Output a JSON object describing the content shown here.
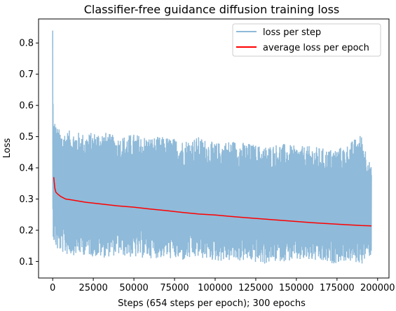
{
  "chart_data": {
    "type": "line",
    "title": "Classifier-free guidance diffusion training loss",
    "xlabel": "Steps (654 steps per epoch); 300 epochs",
    "ylabel": "Loss",
    "xlim": [
      -8700,
      207000
    ],
    "ylim": [
      0.047,
      0.877
    ],
    "xticks": [
      0,
      25000,
      50000,
      75000,
      100000,
      125000,
      150000,
      175000,
      200000
    ],
    "xtick_labels": [
      "0",
      "25000",
      "50000",
      "75000",
      "100000",
      "125000",
      "150000",
      "175000",
      "200000"
    ],
    "yticks": [
      0.1,
      0.2,
      0.3,
      0.4,
      0.5,
      0.6,
      0.7,
      0.8
    ],
    "ytick_labels": [
      "0.1",
      "0.2",
      "0.3",
      "0.4",
      "0.5",
      "0.6",
      "0.7",
      "0.8"
    ],
    "grid": false,
    "legend_position": "top-right",
    "series": [
      {
        "name": "loss per step",
        "color": "#8fbad9",
        "x": [
          0,
          300,
          654,
          1300,
          2000,
          3000,
          5000,
          8000,
          12000,
          20000,
          30000,
          40000,
          50000,
          60000,
          70000,
          80000,
          90000,
          100000,
          110000,
          120000,
          130000,
          140000,
          150000,
          160000,
          170000,
          180000,
          190000,
          196200
        ],
        "upper": [
          0.84,
          0.57,
          0.55,
          0.56,
          0.54,
          0.53,
          0.52,
          0.52,
          0.52,
          0.51,
          0.52,
          0.5,
          0.51,
          0.5,
          0.5,
          0.49,
          0.5,
          0.48,
          0.49,
          0.48,
          0.47,
          0.48,
          0.47,
          0.47,
          0.46,
          0.47,
          0.51,
          0.4
        ],
        "lower": [
          0.18,
          0.18,
          0.16,
          0.15,
          0.14,
          0.13,
          0.13,
          0.12,
          0.12,
          0.12,
          0.11,
          0.12,
          0.11,
          0.11,
          0.11,
          0.1,
          0.11,
          0.1,
          0.1,
          0.1,
          0.09,
          0.1,
          0.1,
          0.1,
          0.09,
          0.1,
          0.09,
          0.12
        ]
      },
      {
        "name": "average loss per epoch",
        "color": "#ff0000",
        "x": [
          654,
          1308,
          1962,
          3270,
          5000,
          8000,
          12000,
          20000,
          30000,
          40000,
          50000,
          60000,
          70000,
          80000,
          90000,
          100000,
          110000,
          120000,
          130000,
          140000,
          150000,
          160000,
          170000,
          180000,
          190000,
          196200
        ],
        "y": [
          0.37,
          0.335,
          0.322,
          0.315,
          0.308,
          0.3,
          0.297,
          0.29,
          0.284,
          0.278,
          0.274,
          0.268,
          0.263,
          0.257,
          0.252,
          0.249,
          0.244,
          0.24,
          0.236,
          0.232,
          0.228,
          0.224,
          0.221,
          0.218,
          0.215,
          0.214
        ]
      }
    ]
  }
}
